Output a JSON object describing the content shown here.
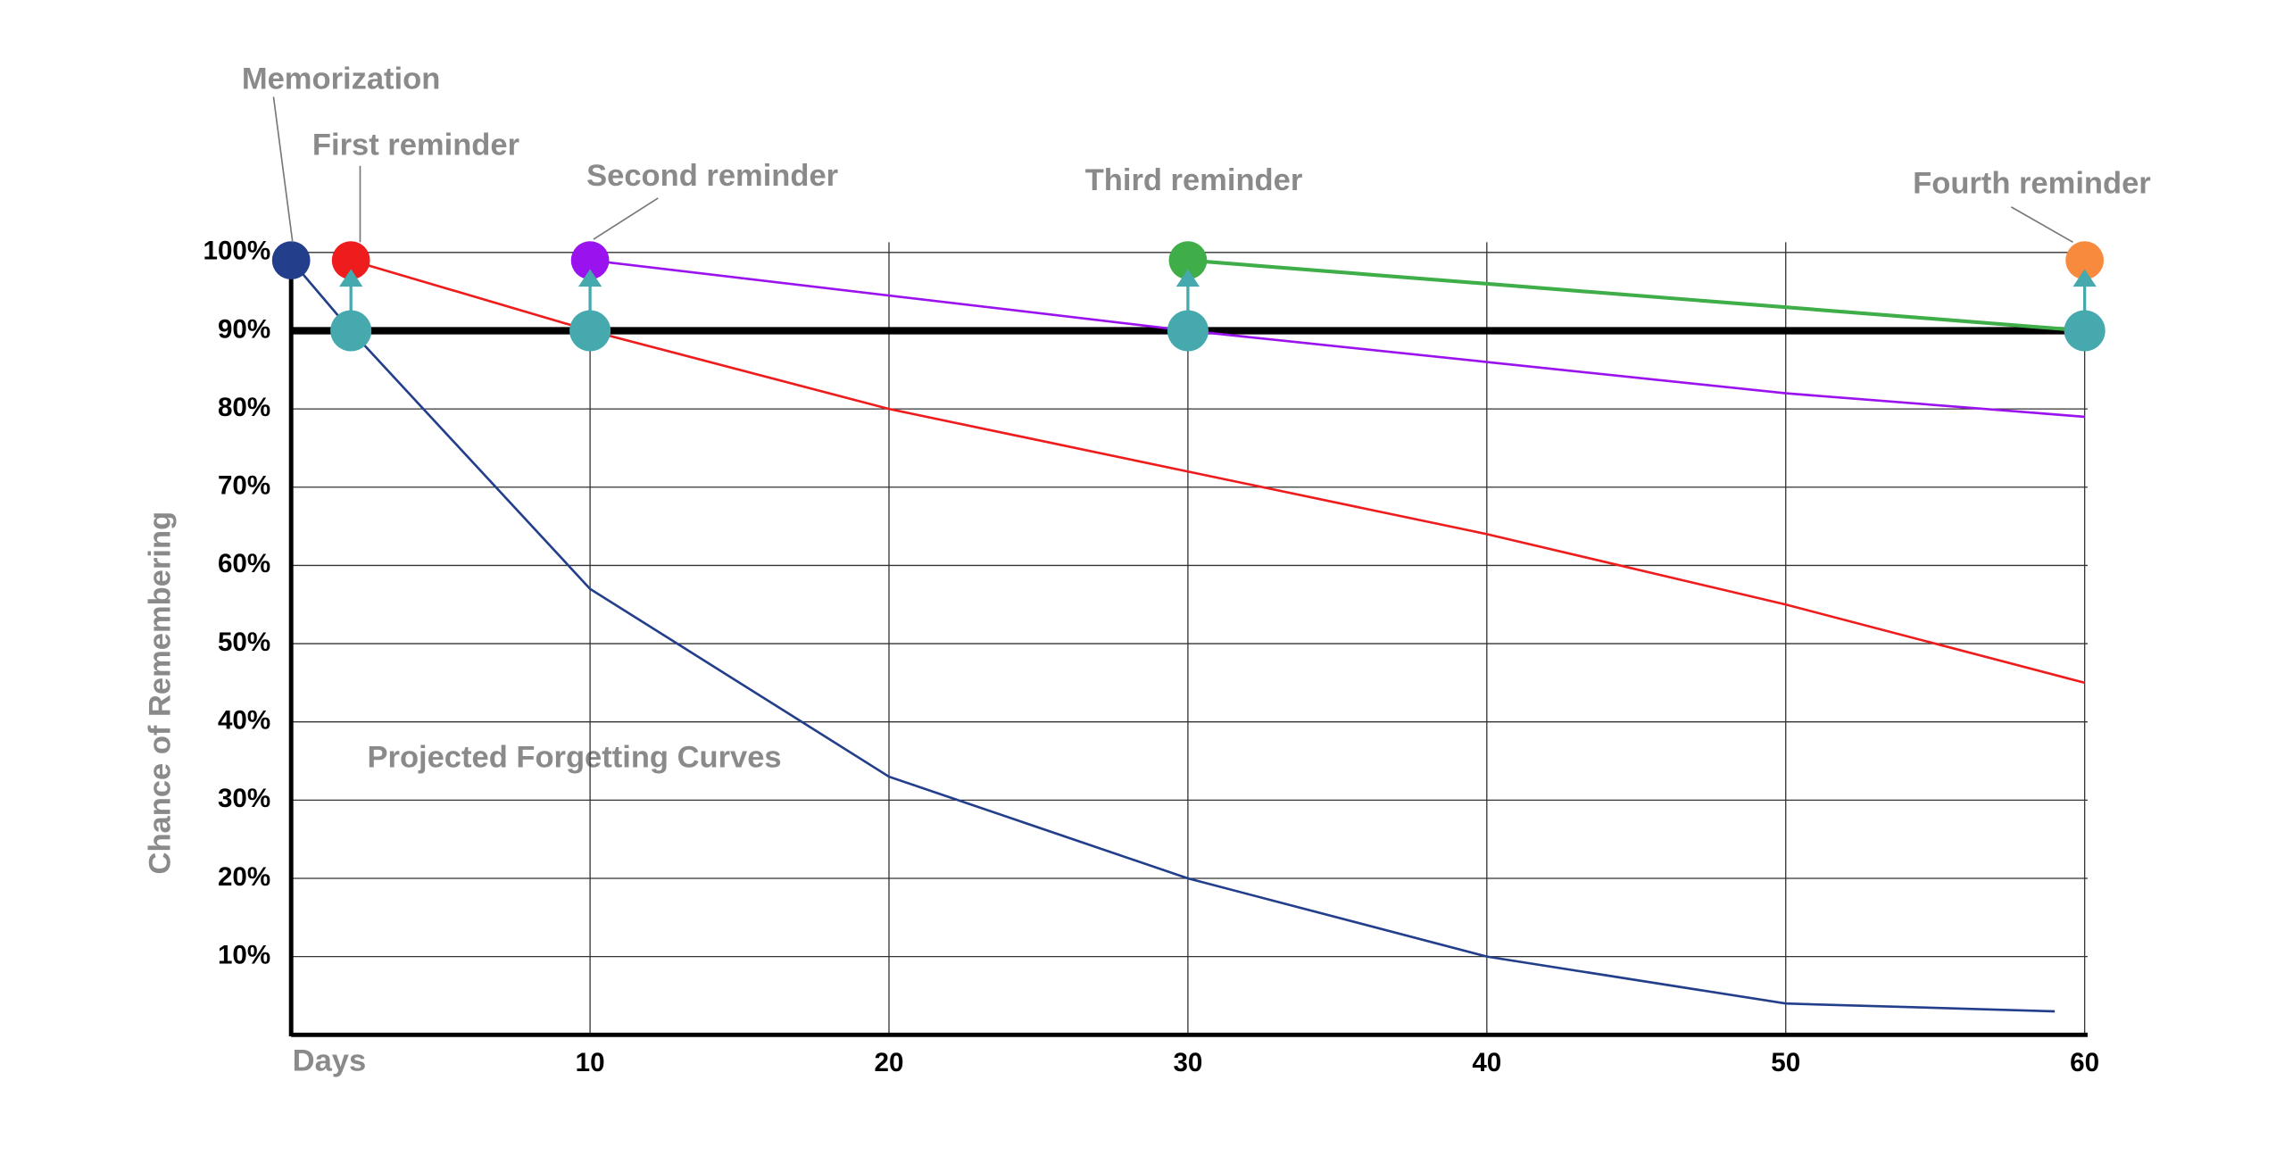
{
  "chart_data": {
    "type": "line",
    "annotation": "Projected Forgetting Curves",
    "x_label": "Days",
    "y_label": "Chance of Remembering",
    "xlim": [
      0,
      60
    ],
    "ylim": [
      0,
      100
    ],
    "xticks": [
      10,
      20,
      30,
      40,
      50,
      60
    ],
    "yticks": [
      {
        "value": 10,
        "label": "10%"
      },
      {
        "value": 20,
        "label": "20%"
      },
      {
        "value": 30,
        "label": "30%"
      },
      {
        "value": 40,
        "label": "40%"
      },
      {
        "value": 50,
        "label": "50%"
      },
      {
        "value": 60,
        "label": "60%"
      },
      {
        "value": 70,
        "label": "70%"
      },
      {
        "value": 80,
        "label": "80%"
      },
      {
        "value": 90,
        "label": "90%"
      },
      {
        "value": 100,
        "label": "100%"
      }
    ],
    "grid": true,
    "threshold": 90,
    "series": [
      {
        "name": "Memorization",
        "color": "#233e8b",
        "x": [
          0,
          2,
          10,
          20,
          30,
          40,
          50,
          59
        ],
        "values": [
          99,
          90,
          57,
          33,
          20,
          10,
          4,
          3
        ]
      },
      {
        "name": "First reminder",
        "color": "#ee1c1c",
        "x": [
          2,
          10,
          20,
          30,
          40,
          50,
          60
        ],
        "values": [
          99,
          90,
          80,
          72,
          64,
          55,
          45
        ]
      },
      {
        "name": "Second reminder",
        "color": "#9a12ee",
        "x": [
          10,
          30,
          40,
          50,
          60
        ],
        "values": [
          99,
          90,
          86,
          82,
          79
        ]
      },
      {
        "name": "Third reminder",
        "color": "#3fae49",
        "x": [
          30,
          60
        ],
        "values": [
          99,
          90
        ]
      },
      {
        "name": "Fourth reminder",
        "color": "#f88a3e",
        "x": [
          60
        ],
        "values": [
          99
        ]
      }
    ],
    "reviews": {
      "color": "#45a9ad",
      "x": [
        2,
        10,
        30,
        60
      ],
      "values": [
        90,
        90,
        90,
        90
      ]
    }
  }
}
